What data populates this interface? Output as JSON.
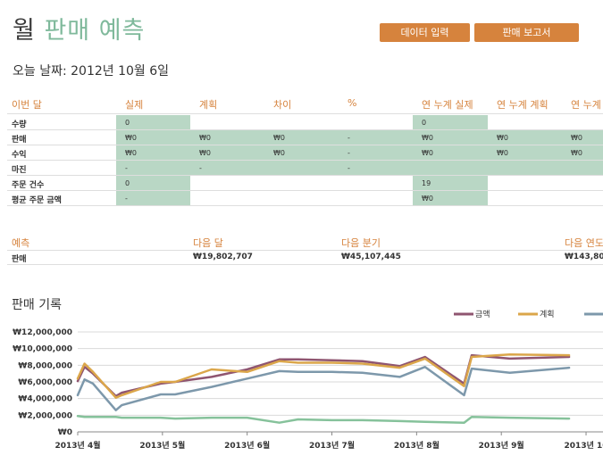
{
  "header": {
    "title_part1": "월",
    "title_part2": "판매 예측",
    "btn_data": "데이터 입력",
    "btn_report": "판매 보고서",
    "date": "오늘 날짜: 2012년 10월 6일"
  },
  "table": {
    "headers": [
      "이번 달",
      "실제",
      "계획",
      "차이",
      "%",
      "연 누계 실제",
      "연 누계 계획",
      "연 누계"
    ],
    "rows": [
      {
        "label": "수량",
        "values": [
          "0",
          "",
          "",
          "",
          "0",
          "",
          ""
        ]
      },
      {
        "label": "판매",
        "values": [
          "₩0",
          "₩0",
          "₩0",
          "-",
          "₩0",
          "₩0",
          "₩0"
        ]
      },
      {
        "label": "수익",
        "values": [
          "₩0",
          "₩0",
          "₩0",
          "-",
          "₩0",
          "₩0",
          "₩0"
        ]
      },
      {
        "label": "마진",
        "values": [
          "-",
          "-",
          "",
          "-",
          "",
          "",
          ""
        ]
      },
      {
        "label": "주문 건수",
        "values": [
          "0",
          "",
          "",
          "",
          "19",
          "",
          ""
        ]
      },
      {
        "label": "평균 주문 금액",
        "values": [
          "-",
          "",
          "",
          "",
          "₩0",
          "",
          ""
        ]
      }
    ]
  },
  "forecast": {
    "headers": [
      "예측",
      "다음 달",
      "다음 분기",
      "다음 연도"
    ],
    "row_label": "판매",
    "values": [
      "₩19,802,707",
      "₩45,107,445",
      "₩143,800,"
    ]
  },
  "chart_title": "판매 기록",
  "chart_data": {
    "type": "line",
    "title": "판매 기록",
    "ylim": [
      0,
      12000000
    ],
    "yticks": [
      "₩0",
      "₩2,000,000",
      "₩4,000,000",
      "₩6,000,000",
      "₩8,000,000",
      "₩10,000,000",
      "₩12,000,000"
    ],
    "xticks": [
      "2013년 4월",
      "2013년 5월",
      "2013년 6월",
      "2013년 7월",
      "2013년 8월",
      "2013년 9월",
      "2013년 10"
    ],
    "x": [
      0,
      0.08,
      0.18,
      0.45,
      0.52,
      0.98,
      1.15,
      1.58,
      2.0,
      2.38,
      2.6,
      3.0,
      3.36,
      3.8,
      4.1,
      4.56,
      4.65,
      5.1,
      5.8
    ],
    "grid": true,
    "legend_position": "top-right",
    "series": [
      {
        "name": "금액",
        "color": "#8f5570",
        "values": [
          6100000,
          7800000,
          7000000,
          4300000,
          4700000,
          5800000,
          6000000,
          6600000,
          7500000,
          8700000,
          8700000,
          8600000,
          8500000,
          7900000,
          9000000,
          5800000,
          9200000,
          8800000,
          9000000
        ]
      },
      {
        "name": "계획",
        "color": "#dba64a",
        "values": [
          6400000,
          8200000,
          7200000,
          4100000,
          4400000,
          6000000,
          6000000,
          7500000,
          7200000,
          8500000,
          8300000,
          8300000,
          8200000,
          7700000,
          8800000,
          5500000,
          9000000,
          9300000,
          9200000
        ]
      },
      {
        "name": "",
        "color": "#7d98ab",
        "values": [
          4400000,
          6300000,
          5800000,
          2600000,
          3200000,
          4500000,
          4500000,
          5400000,
          6400000,
          7300000,
          7200000,
          7200000,
          7100000,
          6600000,
          7800000,
          4400000,
          7600000,
          7100000,
          7700000
        ]
      },
      {
        "name": "",
        "color": "#86c29b",
        "values": [
          1900000,
          1800000,
          1800000,
          1800000,
          1700000,
          1700000,
          1600000,
          1700000,
          1700000,
          1100000,
          1500000,
          1400000,
          1400000,
          1300000,
          1200000,
          1100000,
          1800000,
          1700000,
          1600000
        ]
      }
    ]
  }
}
